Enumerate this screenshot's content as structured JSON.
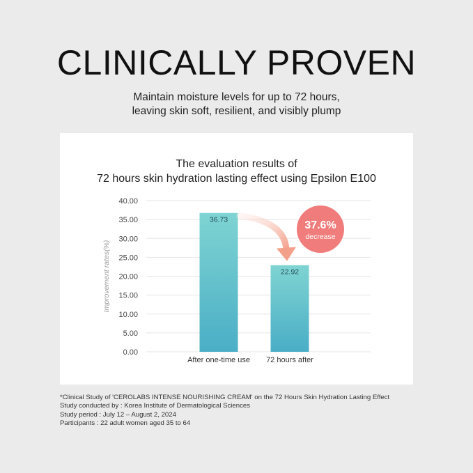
{
  "header": {
    "title": "CLINICALLY PROVEN",
    "subtitle_line1": "Maintain moisture levels for up to 72 hours,",
    "subtitle_line2": "leaving skin soft, resilient, and visibly plump"
  },
  "chart_data": {
    "type": "bar",
    "title_line1": "The evaluation results of",
    "title_line2": "72 hours skin hydration lasting effect using Epsilon E100",
    "ylabel": "Improvement rates(%)",
    "xlabel": "",
    "categories": [
      "After one-time use",
      "72 hours after"
    ],
    "values": [
      36.73,
      22.92
    ],
    "value_labels": [
      "36.73",
      "22.92"
    ],
    "ylim": [
      0,
      40
    ],
    "yticks": [
      "0.00",
      "5.00",
      "10.00",
      "15.00",
      "20.00",
      "25.00",
      "30.00",
      "35.00",
      "40.00"
    ],
    "grid": true,
    "bar_color_top": "#7fd4d2",
    "bar_color_bottom": "#4aaec6",
    "annotation": {
      "value": "37.6%",
      "label": "decrease",
      "color": "#f07c7c",
      "arrow_color": "#f3a08a"
    }
  },
  "footnotes": [
    "*Clinical Study of 'CEROLABS INTENSE NOURISHING CREAM' on the 72 Hours Skin Hydration Lasting Effect",
    "Study conducted by : Korea Institute of Dermatological Sciences",
    "Study period : July 12 – August 2, 2024",
    "Participants : 22 adult women aged 35 to 64"
  ]
}
